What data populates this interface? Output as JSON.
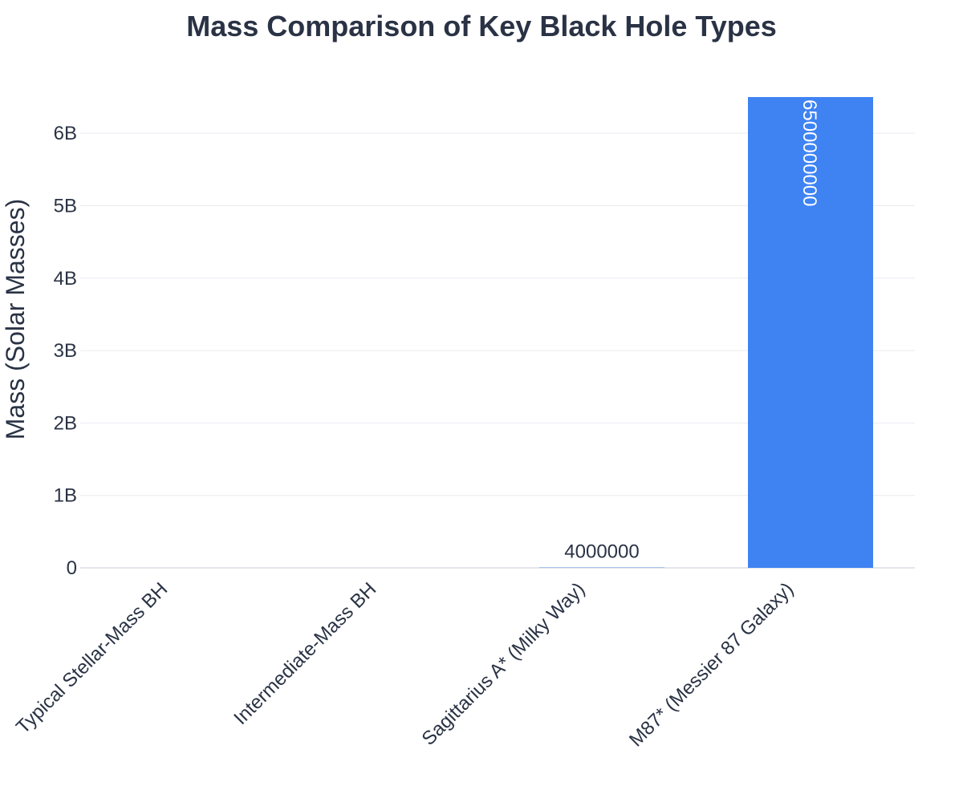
{
  "chart_data": {
    "type": "bar",
    "title": "Mass Comparison of Key Black Hole Types",
    "xlabel": "",
    "ylabel": "Mass (Solar Masses)",
    "categories": [
      "Typical Stellar-Mass BH",
      "Intermediate-Mass BH",
      "Sagittarius A* (Milky Way)",
      "M87* (Messier 87 Galaxy)"
    ],
    "values": [
      10,
      10000,
      4000000,
      6500000000
    ],
    "data_labels": [
      "",
      "",
      "4000000",
      "6500000000"
    ],
    "ylim": [
      0,
      6500000000
    ],
    "yticks": [
      0,
      1000000000,
      2000000000,
      3000000000,
      4000000000,
      5000000000,
      6000000000
    ],
    "ytick_labels": [
      "0",
      "1B",
      "2B",
      "3B",
      "4B",
      "5B",
      "6B"
    ],
    "grid": true,
    "legend": "none",
    "bar_color": "#3f83f3",
    "label_inside_color": "#ffffff",
    "label_outside_color": "#2a3345"
  }
}
